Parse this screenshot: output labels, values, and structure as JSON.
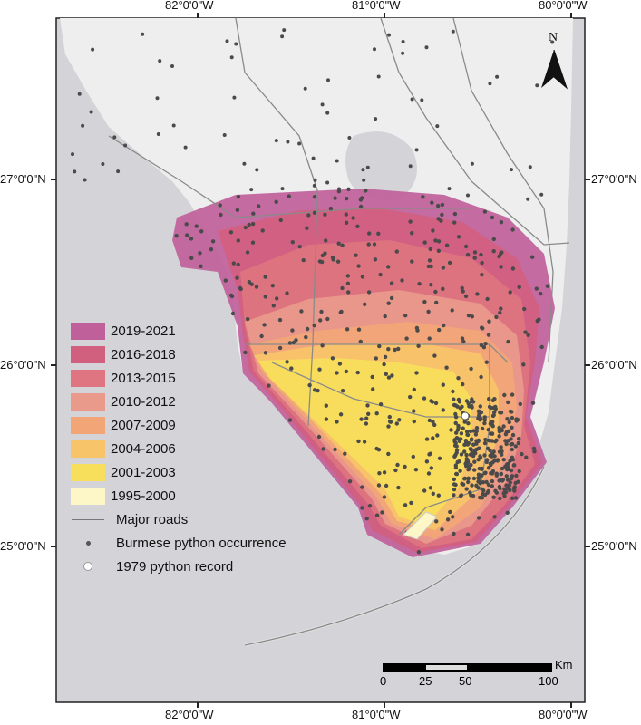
{
  "axes": {
    "top_labels": [
      "82°0'0\"W",
      "81°0'0\"W",
      "80°0'0\"W"
    ],
    "bottom_labels": [
      "82°0'0\"W",
      "81°0'0\"W",
      "80°0'0\"W"
    ],
    "left_labels": [
      "27°0'0\"N",
      "26°0'0\"N",
      "25°0'0\"N"
    ],
    "right_labels": [
      "27°0'0\"N",
      "26°0'0\"N",
      "25°0'0\"N"
    ]
  },
  "north_arrow": {
    "label": "N"
  },
  "legend": {
    "ranges": [
      {
        "label": "2019-2021",
        "color": "#c0609a"
      },
      {
        "label": "2016-2018",
        "color": "#d1607f"
      },
      {
        "label": "2013-2015",
        "color": "#de7580"
      },
      {
        "label": "2010-2012",
        "color": "#e99a8b"
      },
      {
        "label": "2007-2009",
        "color": "#f2a677"
      },
      {
        "label": "2004-2006",
        "color": "#f8c46a"
      },
      {
        "label": "2001-2003",
        "color": "#f7df5c"
      },
      {
        "label": "1995-2000",
        "color": "#fdf6c6"
      }
    ],
    "roads": "Major roads",
    "occurrence": "Burmese python occurrence",
    "record_1979": "1979 python record"
  },
  "scale_bar": {
    "unit": "Km",
    "ticks": [
      "0",
      "25",
      "50",
      "100"
    ]
  },
  "colors": {
    "water": "#d4d4d8",
    "land": "#eeeeee",
    "roads": "#8a8a8a",
    "dots": "#4a4a4a"
  }
}
